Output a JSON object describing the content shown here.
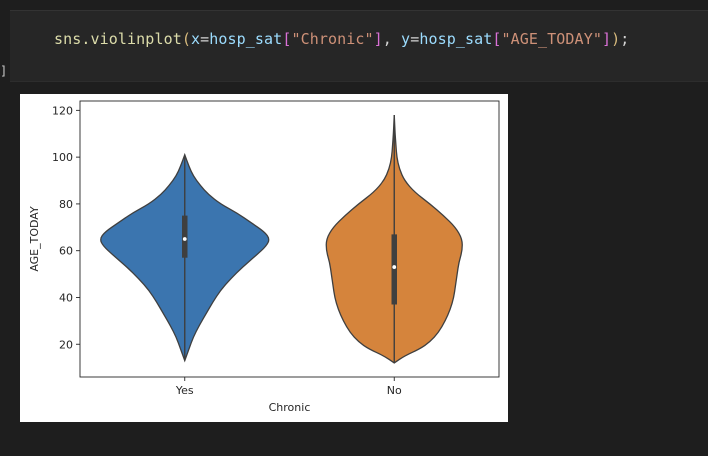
{
  "code": {
    "fn": "sns.violinplot",
    "kw_x": "x",
    "var_x": "hosp_sat",
    "key_x": "\"Chronic\"",
    "kw_y": "y",
    "var_y": "hosp_sat",
    "key_y": "\"AGE_TODAY\"",
    "end": ";"
  },
  "cell_bracket": "]",
  "chart_data": {
    "type": "violin",
    "xlabel": "Chronic",
    "ylabel": "AGE_TODAY",
    "categories": [
      "Yes",
      "No"
    ],
    "ylim": [
      6,
      124
    ],
    "yticks": [
      20,
      40,
      60,
      80,
      100,
      120
    ],
    "colors": [
      "#3b75af",
      "#d5843c"
    ],
    "series": [
      {
        "category": "Yes",
        "range": [
          13,
          101
        ],
        "q1": 57,
        "median": 65,
        "q3": 75,
        "density": [
          [
            13,
            0.0
          ],
          [
            18,
            0.05
          ],
          [
            23,
            0.1
          ],
          [
            28,
            0.17
          ],
          [
            33,
            0.25
          ],
          [
            38,
            0.33
          ],
          [
            43,
            0.42
          ],
          [
            48,
            0.54
          ],
          [
            53,
            0.68
          ],
          [
            58,
            0.84
          ],
          [
            62,
            0.96
          ],
          [
            65,
            1.0
          ],
          [
            68,
            0.94
          ],
          [
            72,
            0.78
          ],
          [
            76,
            0.62
          ],
          [
            80,
            0.42
          ],
          [
            84,
            0.28
          ],
          [
            88,
            0.18
          ],
          [
            92,
            0.1
          ],
          [
            96,
            0.05
          ],
          [
            101,
            0.0
          ]
        ]
      },
      {
        "category": "No",
        "range": [
          12,
          118
        ],
        "q1": 37,
        "median": 53,
        "q3": 67,
        "density": [
          [
            12,
            0.0
          ],
          [
            15,
            0.12
          ],
          [
            18,
            0.3
          ],
          [
            21,
            0.42
          ],
          [
            25,
            0.52
          ],
          [
            30,
            0.6
          ],
          [
            35,
            0.66
          ],
          [
            40,
            0.7
          ],
          [
            45,
            0.72
          ],
          [
            50,
            0.74
          ],
          [
            55,
            0.76
          ],
          [
            60,
            0.8
          ],
          [
            65,
            0.8
          ],
          [
            70,
            0.72
          ],
          [
            75,
            0.58
          ],
          [
            80,
            0.42
          ],
          [
            85,
            0.24
          ],
          [
            90,
            0.12
          ],
          [
            95,
            0.06
          ],
          [
            100,
            0.03
          ],
          [
            105,
            0.02
          ],
          [
            110,
            0.01
          ],
          [
            114,
            0.005
          ],
          [
            118,
            0.0
          ]
        ]
      }
    ]
  }
}
